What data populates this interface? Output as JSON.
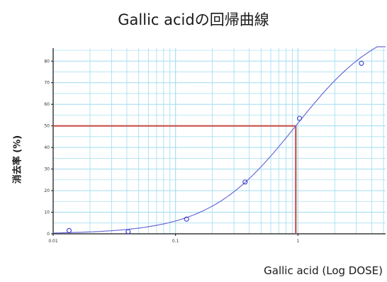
{
  "chart_data": {
    "type": "scatter",
    "title": "Gallic acidの回帰曲線",
    "xlabel": "Gallic acid (Log DOSE)",
    "ylabel": "消去率 (%)",
    "x_scale": "log",
    "xlim": [
      0.01,
      5.2
    ],
    "ylim": [
      0,
      86
    ],
    "x_ticks": [
      0.01,
      0.1,
      1
    ],
    "x_tick_labels": [
      "0.01",
      "0.1",
      "1"
    ],
    "y_ticks": [
      0,
      10,
      20,
      30,
      40,
      50,
      60,
      70,
      80
    ],
    "y_tick_labels": [
      "0",
      "10",
      "20",
      "30",
      "40",
      "50",
      "60",
      "70",
      "80"
    ],
    "grid": true,
    "series": [
      {
        "points": [
          {
            "x": 0.0135,
            "y": 1.5
          },
          {
            "x": 0.041,
            "y": 1.0
          },
          {
            "x": 0.123,
            "y": 6.8
          },
          {
            "x": 0.37,
            "y": 24
          },
          {
            "x": 1.03,
            "y": 53.5
          },
          {
            "x": 3.3,
            "y": 79
          }
        ]
      }
    ],
    "fit_curve": {
      "type": "logistic",
      "ec50": 0.96,
      "hill": 1.22,
      "top": 100,
      "bottom": 0
    },
    "reference_line": {
      "x": 0.96,
      "y": 50
    },
    "colors": {
      "grid": "#9fdcef",
      "curve": "#6b6bd6",
      "points": "#3a3ac8",
      "reference": "#c8504c",
      "axis": "#111111"
    }
  }
}
